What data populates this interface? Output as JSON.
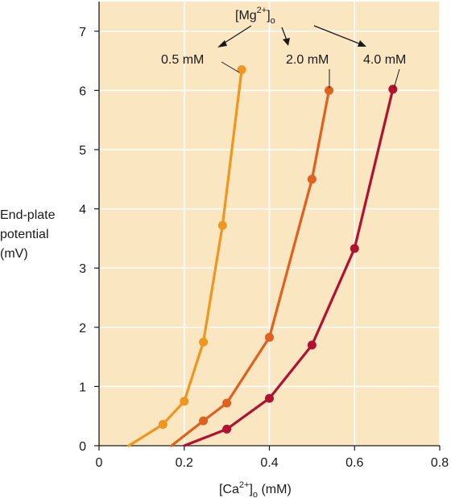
{
  "chart_data": {
    "type": "line",
    "title": "",
    "ylabel": "End-plate potential (mV)",
    "ylabel_lines": [
      "End-plate",
      "potential",
      "(mV)"
    ],
    "xlabel": {
      "base": "[Ca",
      "sup": "2+",
      "close": "]",
      "sub": "o",
      "rest": " (mM)"
    },
    "xlim": [
      0,
      0.8
    ],
    "ylim": [
      0,
      7.5
    ],
    "xticks": [
      0,
      0.2,
      0.4,
      0.6,
      0.8
    ],
    "xtick_labels": [
      "0",
      "0.2",
      "0.4",
      "0.6",
      "0.8"
    ],
    "yticks": [
      0,
      1,
      2,
      3,
      4,
      5,
      6,
      7
    ],
    "ytick_labels": [
      "0",
      "1",
      "2",
      "3",
      "4",
      "5",
      "6",
      "7"
    ],
    "grid": true,
    "background": "#fbe6c2",
    "grid_color": "#ffffff",
    "annotation_group": {
      "base": "[Mg",
      "sup": "2+",
      "close": "]",
      "sub": "o"
    },
    "series": [
      {
        "label": "0.5 mM",
        "color": "#f0961e",
        "line_start": [
          0.07,
          0
        ],
        "x": [
          0.15,
          0.2,
          0.245,
          0.29,
          0.335
        ],
        "y": [
          0.36,
          0.75,
          1.75,
          3.72,
          6.35
        ]
      },
      {
        "label": "2.0 mM",
        "color": "#e06020",
        "line_start": [
          0.17,
          0
        ],
        "x": [
          0.245,
          0.3,
          0.4,
          0.5,
          0.54
        ],
        "y": [
          0.42,
          0.72,
          1.83,
          4.5,
          6.0
        ]
      },
      {
        "label": "4.0 mM",
        "color": "#b01230",
        "line_start": [
          0.2,
          0
        ],
        "x": [
          0.3,
          0.4,
          0.5,
          0.6,
          0.69
        ],
        "y": [
          0.28,
          0.8,
          1.7,
          3.33,
          6.02
        ]
      }
    ]
  }
}
